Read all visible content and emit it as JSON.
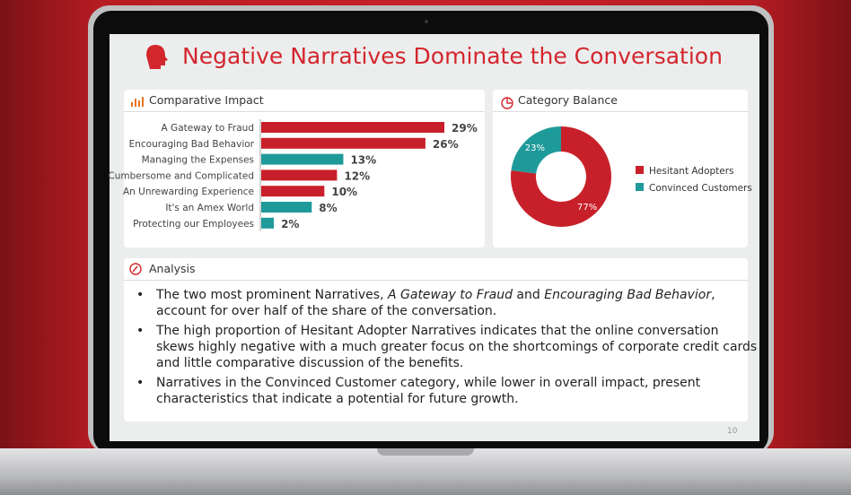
{
  "slide": {
    "title": "Negative Narratives Dominate the Conversation",
    "page_number": "10"
  },
  "chart_data": [
    {
      "type": "bar",
      "horizontal": true,
      "title": "Comparative Impact",
      "categories": [
        "A Gateway to Fraud",
        "Encouraging Bad Behavior",
        "Managing the Expenses",
        "Cumbersome and Complicated",
        "An Unrewarding Experience",
        "It's an Amex World",
        "Protecting our Employees"
      ],
      "values": [
        29,
        26,
        13,
        12,
        10,
        8,
        2
      ],
      "value_labels": [
        "29%",
        "26%",
        "13%",
        "12%",
        "10%",
        "8%",
        "2%"
      ],
      "colors": [
        "#c8202a",
        "#c8202a",
        "#1f9a9a",
        "#c8202a",
        "#c8202a",
        "#1f9a9a",
        "#1f9a9a"
      ]
    },
    {
      "type": "pie",
      "donut": true,
      "title": "Category Balance",
      "legend": "right",
      "categories": [
        "Hesitant Adopters",
        "Convinced Customers"
      ],
      "values": [
        77,
        23
      ],
      "value_labels": [
        "77%",
        "23%"
      ],
      "colors": [
        "#c8202a",
        "#1f9a9a"
      ]
    }
  ],
  "analysis": {
    "title": "Analysis",
    "bullets": [
      [
        {
          "text": "The two most prominent Narratives, ",
          "italic": false
        },
        {
          "text": "A Gateway to Fraud",
          "italic": true
        },
        {
          "text": " and ",
          "italic": false
        },
        {
          "text": "Encouraging Bad Behavior",
          "italic": true
        },
        {
          "text": ", account for over half of the share of the conversation.",
          "italic": false
        }
      ],
      [
        {
          "text": "The high proportion of Hesitant Adopter Narratives indicates that the online conversation skews highly negative with a much greater focus on the shortcomings of corporate credit cards and little comparative discussion of the benefits.",
          "italic": false
        }
      ],
      [
        {
          "text": "Narratives in the Convinced Customer category, while lower in overall impact, present characteristics that indicate a potential for future growth.",
          "italic": false
        }
      ]
    ]
  }
}
